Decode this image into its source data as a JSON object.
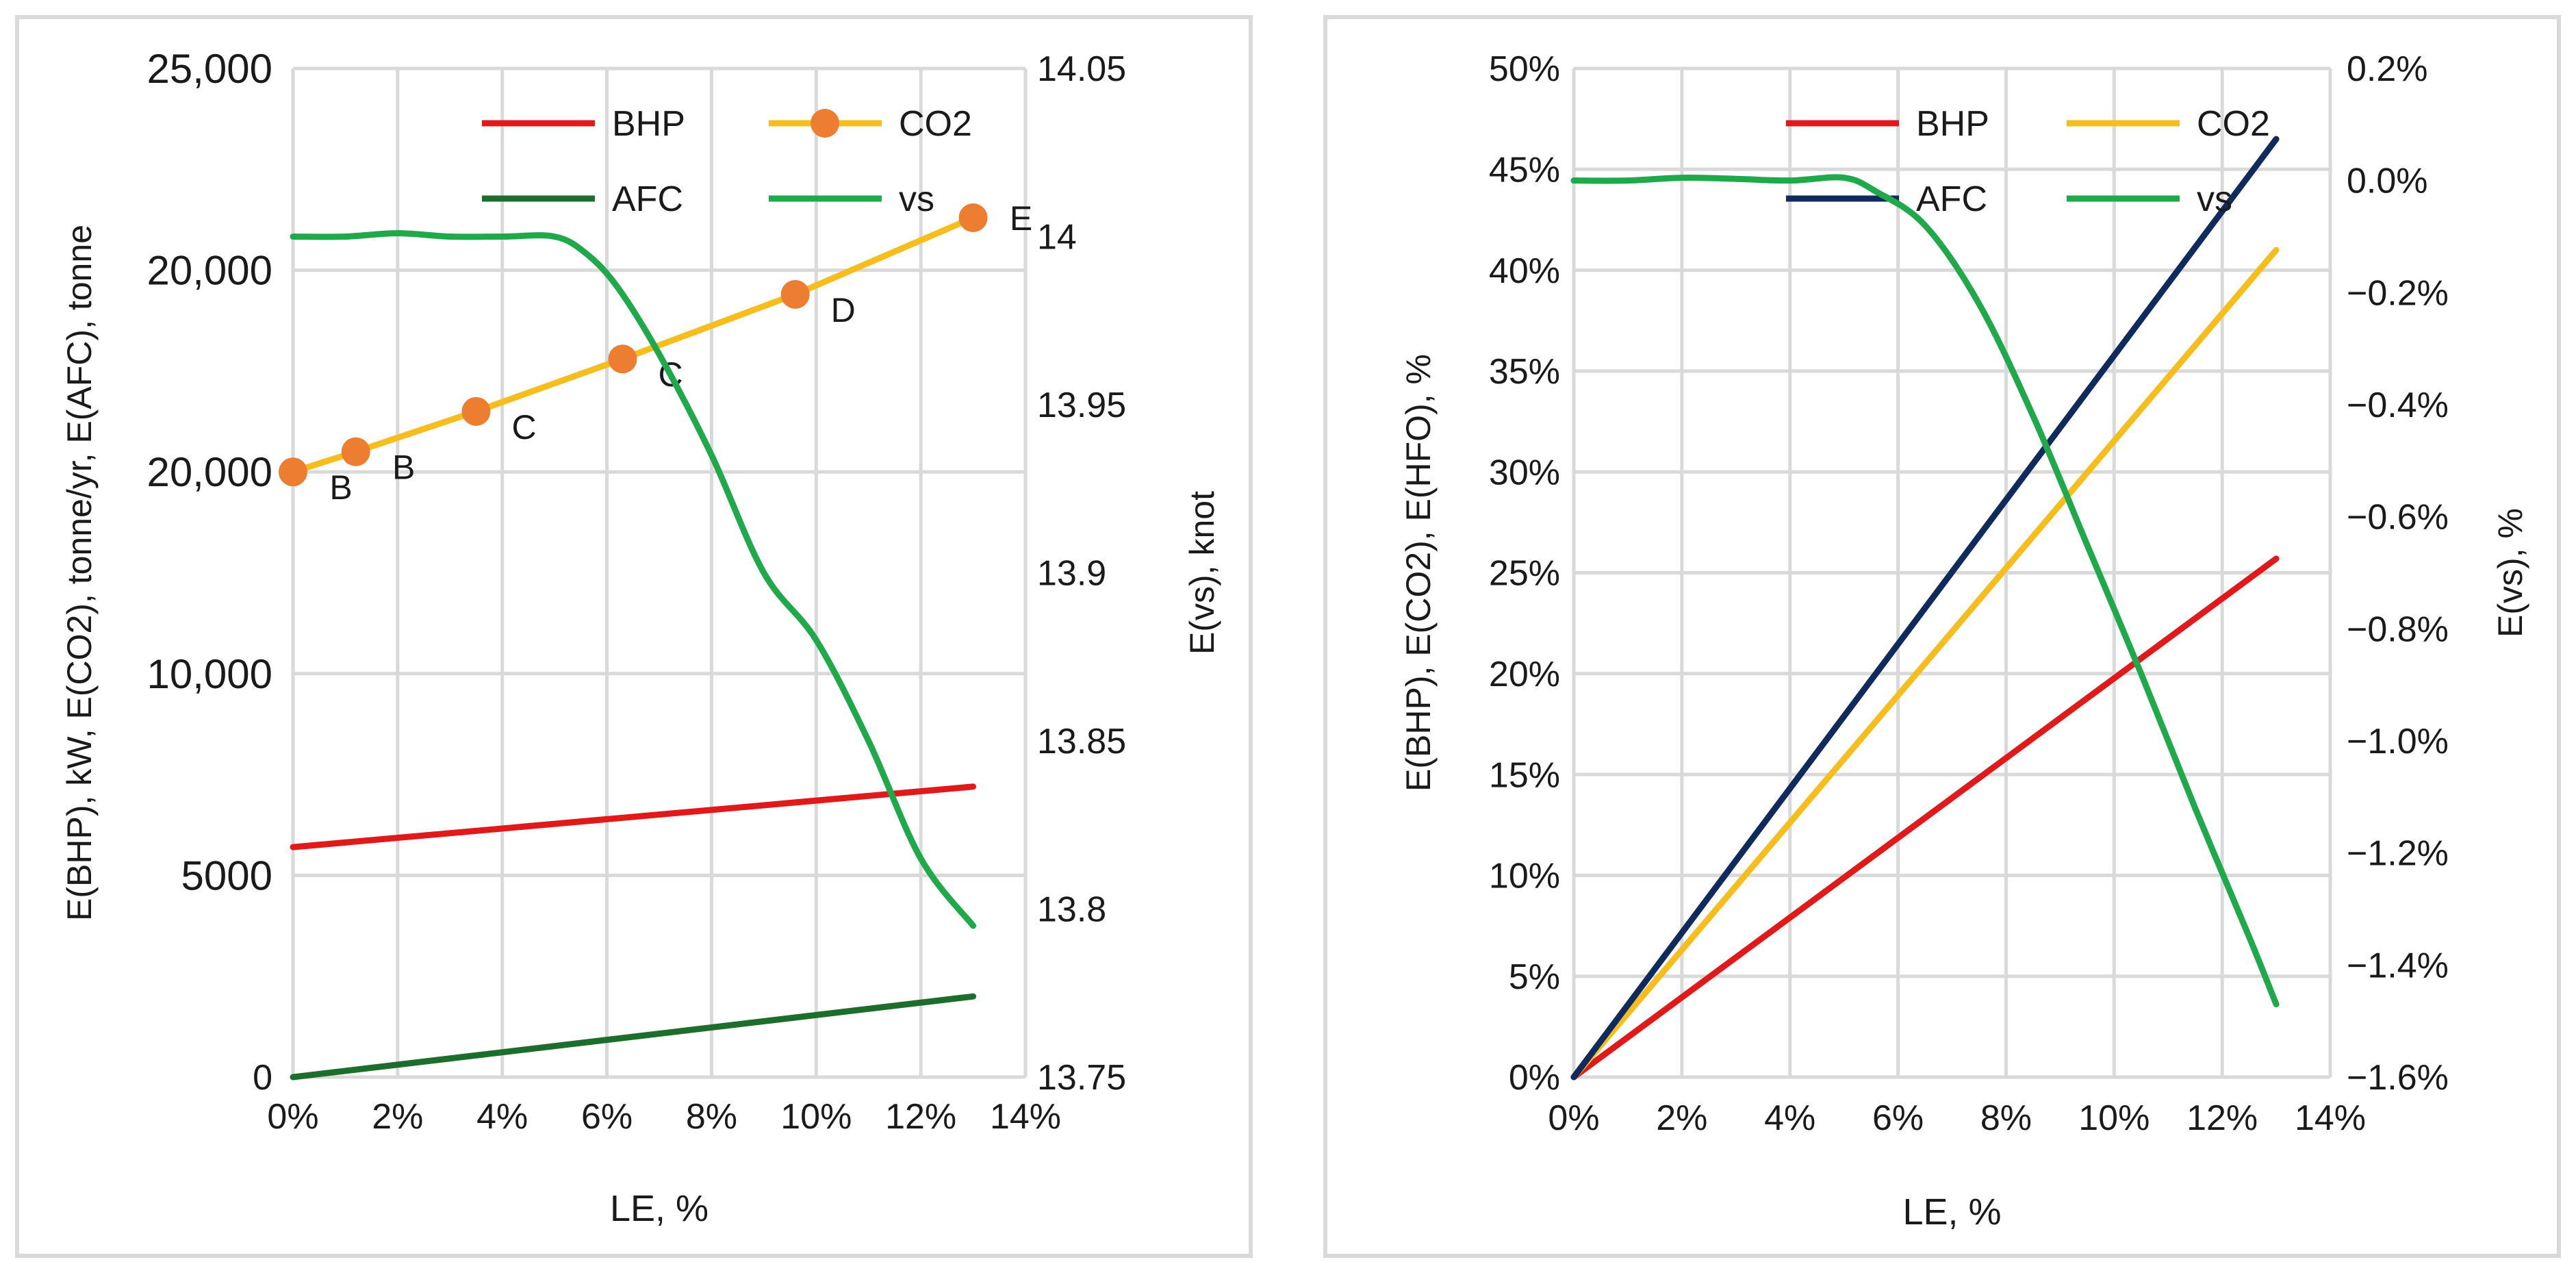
{
  "chart_data": [
    {
      "type": "line",
      "x": [
        0,
        1.2,
        3.5,
        6.3,
        9.6,
        13.0
      ],
      "x_ticks": [
        "0%",
        "2%",
        "4%",
        "6%",
        "8%",
        "10%",
        "12%",
        "14%"
      ],
      "xlim": [
        0,
        14
      ],
      "xlabel": "LE, %",
      "ylabel": "E(BHP), kW, E(CO2), tonne/yr, E(AFC), tonne",
      "y_ticks": [
        "0",
        "5000",
        "10,000",
        "20,000",
        "20,000",
        "25,000"
      ],
      "ylim": [
        0,
        25000
      ],
      "y2label": "E(vs), knot",
      "y2_ticks": [
        "13.75",
        "13.8",
        "13.85",
        "13.9",
        "13.95",
        "14",
        "14.05"
      ],
      "y2lim": [
        13.75,
        14.05
      ],
      "legend_position": "top-right",
      "series": [
        {
          "name": "BHP",
          "axis": "left",
          "color": "#e01a1a",
          "x": [
            0,
            13
          ],
          "values": [
            5700,
            7200
          ]
        },
        {
          "name": "CO2",
          "axis": "left",
          "color": "#f5be1e",
          "marker_color": "#ec7d31",
          "x": [
            0,
            1.2,
            3.5,
            6.3,
            9.6,
            13.0
          ],
          "values": [
            15000,
            15500,
            16500,
            17800,
            19400,
            21300
          ],
          "point_labels": [
            "B",
            "B",
            "C",
            "C",
            "D",
            "E"
          ]
        },
        {
          "name": "AFC",
          "axis": "left",
          "color": "#1d6d2c",
          "x": [
            0,
            13
          ],
          "values": [
            0,
            2000
          ]
        },
        {
          "name": "vs",
          "axis": "right",
          "color": "#1fa94a",
          "x": [
            0,
            1,
            2,
            3,
            4,
            5,
            5.6,
            6.2,
            7,
            8,
            9,
            10,
            11,
            12,
            13
          ],
          "values": [
            14.0,
            14.0,
            14.001,
            14.0,
            14.0,
            14.0,
            13.995,
            13.985,
            13.965,
            13.935,
            13.9,
            13.88,
            13.85,
            13.815,
            13.795
          ]
        }
      ]
    },
    {
      "type": "line",
      "x_ticks": [
        "0%",
        "2%",
        "4%",
        "6%",
        "8%",
        "10%",
        "12%",
        "14%"
      ],
      "xlim": [
        0,
        14
      ],
      "xlabel": "LE, %",
      "ylabel": "E(BHP), E(CO2), E(HFO), %",
      "y_ticks": [
        "0%",
        "5%",
        "10%",
        "15%",
        "20%",
        "25%",
        "30%",
        "35%",
        "40%",
        "45%",
        "50%"
      ],
      "ylim": [
        0,
        50
      ],
      "y2label": "E(vs), %",
      "y2_ticks": [
        "−1.6%",
        "−1.4%",
        "−1.2%",
        "−1.0%",
        "−0.8%",
        "−0.6%",
        "−0.4%",
        "−0.2%",
        "0.0%",
        "0.2%"
      ],
      "y2lim": [
        -1.6,
        0.2
      ],
      "legend_position": "top-right",
      "series": [
        {
          "name": "BHP",
          "axis": "left",
          "color": "#e01a1a",
          "x": [
            0,
            13
          ],
          "values": [
            0,
            25.7
          ]
        },
        {
          "name": "CO2",
          "axis": "left",
          "color": "#f5be1e",
          "x": [
            0,
            13
          ],
          "values": [
            0,
            41.0
          ]
        },
        {
          "name": "AFC",
          "axis": "left",
          "color": "#102a5e",
          "x": [
            0,
            13
          ],
          "values": [
            0,
            46.5
          ]
        },
        {
          "name": "vs",
          "axis": "right",
          "color": "#1fa94a",
          "x": [
            0,
            1,
            2,
            3,
            4,
            5,
            5.6,
            6.5,
            7.5,
            8.5,
            9.5,
            10.5,
            11.5,
            12.5,
            13
          ],
          "values": [
            0.0,
            0.0,
            0.005,
            0.003,
            0.0,
            0.005,
            -0.02,
            -0.08,
            -0.22,
            -0.42,
            -0.65,
            -0.88,
            -1.12,
            -1.35,
            -1.47
          ]
        }
      ]
    }
  ]
}
